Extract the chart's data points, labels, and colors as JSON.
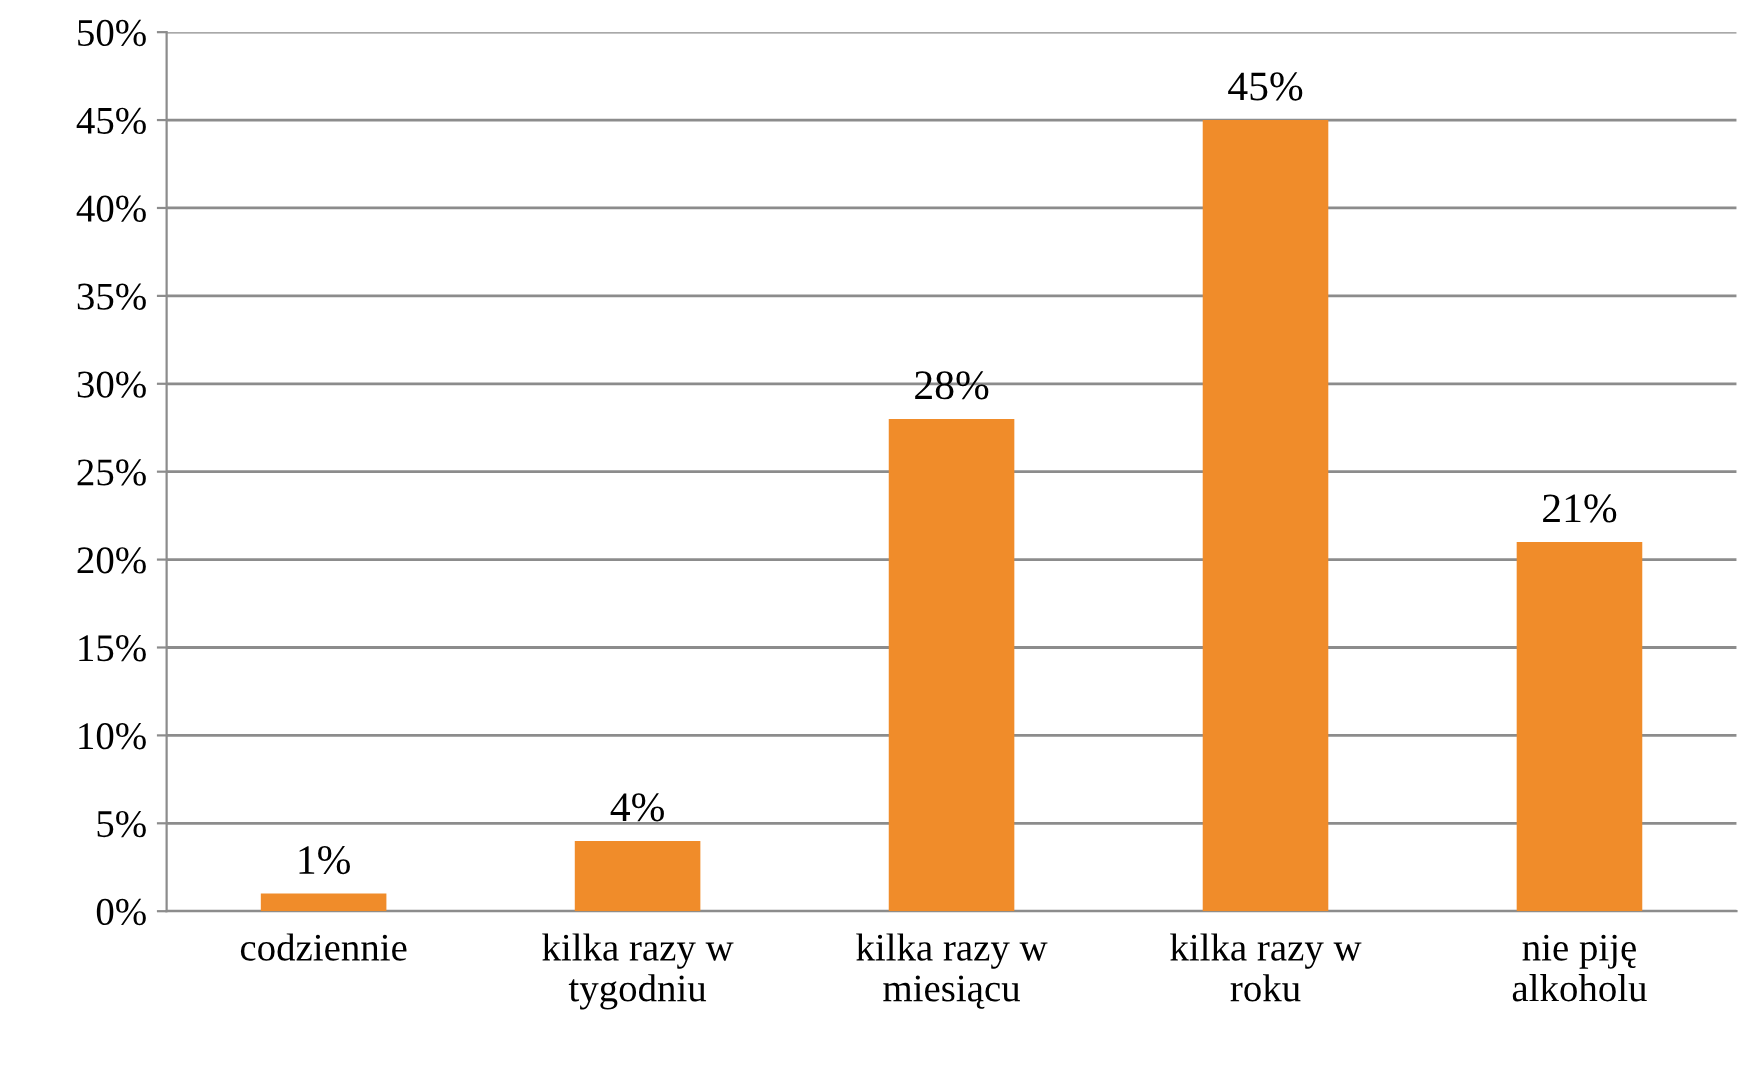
{
  "chart_data": {
    "type": "bar",
    "categories": [
      "codziennie",
      "kilka razy w\ntygodniu",
      "kilka razy w\nmiesiącu",
      "kilka razy w\nroku",
      "nie piję\nalkoholu"
    ],
    "values": [
      1,
      4,
      28,
      45,
      21
    ],
    "value_labels": [
      "1%",
      "4%",
      "28%",
      "45%",
      "21%"
    ],
    "color": "#f08c2a",
    "ylim": [
      0,
      50
    ],
    "yticks": [
      {
        "value": 0,
        "label": "0%"
      },
      {
        "value": 5,
        "label": "5%"
      },
      {
        "value": 10,
        "label": "10%"
      },
      {
        "value": 15,
        "label": "15%"
      },
      {
        "value": 20,
        "label": "20%"
      },
      {
        "value": 25,
        "label": "25%"
      },
      {
        "value": 30,
        "label": "30%"
      },
      {
        "value": 35,
        "label": "35%"
      },
      {
        "value": 40,
        "label": "40%"
      },
      {
        "value": 45,
        "label": "45%"
      },
      {
        "value": 50,
        "label": "50%"
      }
    ],
    "grid": "y",
    "legend": false
  }
}
